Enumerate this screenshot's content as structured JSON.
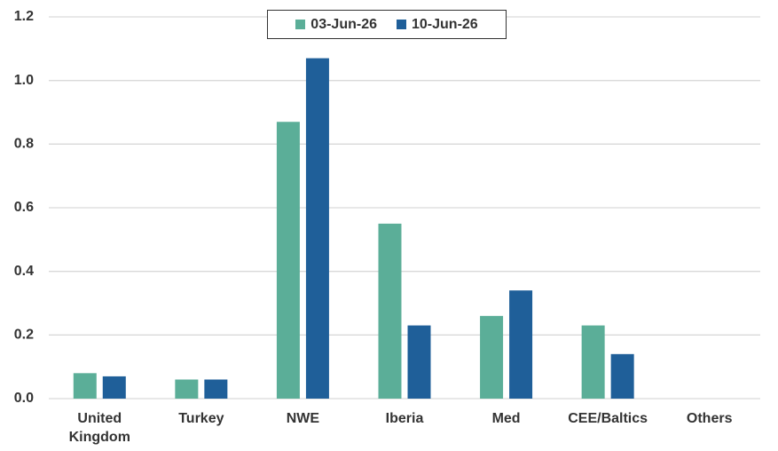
{
  "chart_data": {
    "type": "bar",
    "categories": [
      "United Kingdom",
      "Turkey",
      "NWE",
      "Iberia",
      "Med",
      "CEE/Baltics",
      "Others"
    ],
    "series": [
      {
        "name": "03-Jun-26",
        "color": "#5bae98",
        "values": [
          0.08,
          0.06,
          0.87,
          0.55,
          0.26,
          0.23,
          null
        ]
      },
      {
        "name": "10-Jun-26",
        "color": "#1f5f99",
        "values": [
          0.07,
          0.06,
          1.07,
          0.23,
          0.34,
          0.14,
          null
        ]
      }
    ],
    "ylim": [
      0,
      1.2
    ],
    "yticks": [
      {
        "value": 0,
        "label": "0.0"
      },
      0.2,
      0.4,
      0.6,
      0.8,
      {
        "value": 1,
        "label": "1.0"
      },
      1.2
    ],
    "grid": true,
    "legend": "top"
  }
}
